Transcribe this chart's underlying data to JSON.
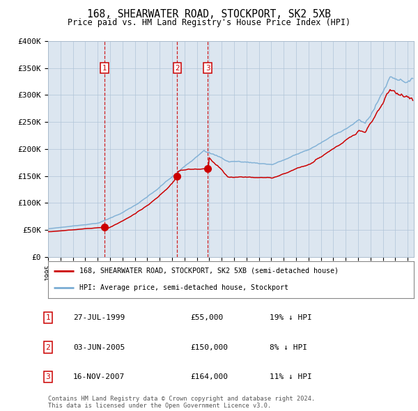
{
  "title": "168, SHEARWATER ROAD, STOCKPORT, SK2 5XB",
  "subtitle": "Price paid vs. HM Land Registry's House Price Index (HPI)",
  "background_color": "#dce6f0",
  "plot_bg_color": "#dce6f0",
  "red_line_label": "168, SHEARWATER ROAD, STOCKPORT, SK2 5XB (semi-detached house)",
  "blue_line_label": "HPI: Average price, semi-detached house, Stockport",
  "transactions": [
    {
      "num": 1,
      "date": "27-JUL-1999",
      "date_x": 1999.57,
      "price": 55000,
      "pct": "19%",
      "dir": "↓"
    },
    {
      "num": 2,
      "date": "03-JUN-2005",
      "date_x": 2005.42,
      "price": 150000,
      "pct": "8%",
      "dir": "↓"
    },
    {
      "num": 3,
      "date": "16-NOV-2007",
      "date_x": 2007.88,
      "price": 164000,
      "pct": "11%",
      "dir": "↓"
    }
  ],
  "ylim": [
    0,
    400000
  ],
  "yticks": [
    0,
    50000,
    100000,
    150000,
    200000,
    250000,
    300000,
    350000,
    400000
  ],
  "ytick_labels": [
    "£0",
    "£50K",
    "£100K",
    "£150K",
    "£200K",
    "£250K",
    "£300K",
    "£350K",
    "£400K"
  ],
  "xlim_start": 1995.0,
  "xlim_end": 2024.5,
  "footer": "Contains HM Land Registry data © Crown copyright and database right 2024.\nThis data is licensed under the Open Government Licence v3.0.",
  "red_color": "#cc0000",
  "blue_color": "#7aadd4",
  "dashed_color": "#cc0000",
  "box_color": "#cc0000",
  "grid_color": "#b0c4d8",
  "table_rows": [
    [
      "1",
      "27-JUL-1999",
      "£55,000",
      "19% ↓ HPI"
    ],
    [
      "2",
      "03-JUN-2005",
      "£150,000",
      "8% ↓ HPI"
    ],
    [
      "3",
      "16-NOV-2007",
      "£164,000",
      "11% ↓ HPI"
    ]
  ]
}
